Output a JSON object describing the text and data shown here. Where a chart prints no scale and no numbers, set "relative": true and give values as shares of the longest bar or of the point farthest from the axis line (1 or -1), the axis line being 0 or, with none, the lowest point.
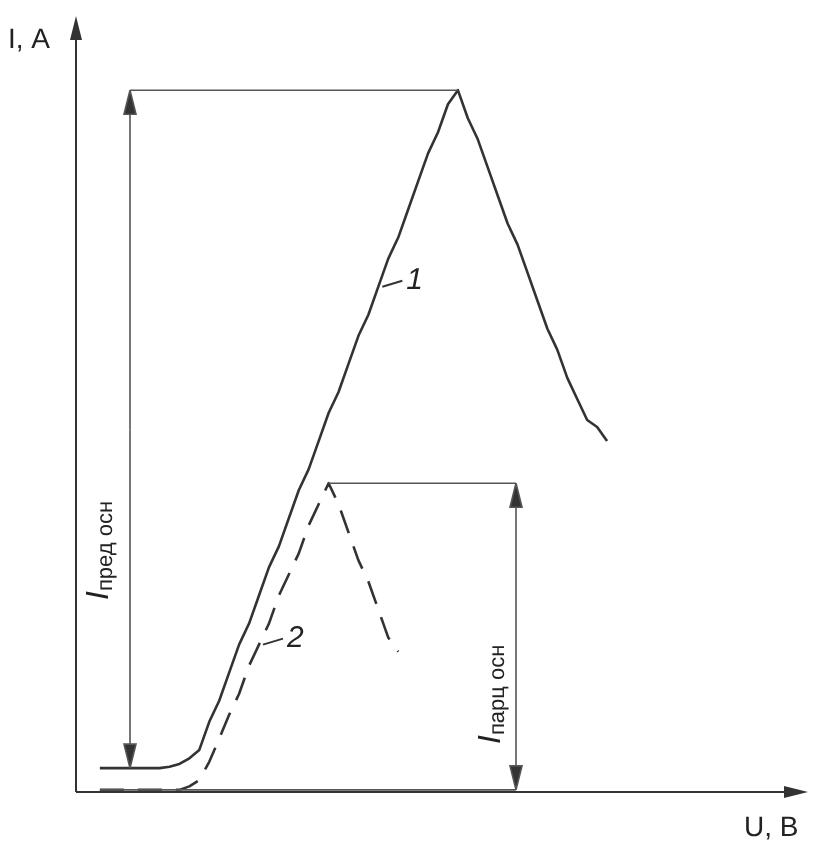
{
  "chart_data": {
    "type": "line",
    "relative": true,
    "legend": "center",
    "xlabel": "U, В",
    "ylabel": "I, А",
    "annotations": [
      "I$_{пред осн}$",
      "I$_{парц осн}$"
    ],
    "categories": [
      null,
      null,
      null,
      null,
      null,
      null,
      null,
      null,
      null,
      null,
      null,
      null,
      null,
      null,
      null,
      null,
      null,
      null,
      null,
      null,
      null,
      null,
      null,
      null,
      null,
      null,
      null,
      null,
      null,
      null,
      null,
      null,
      null,
      null,
      null,
      null,
      null,
      null,
      null,
      null,
      null,
      null,
      null,
      null,
      null,
      null,
      null,
      null,
      null,
      null,
      null,
      null
    ],
    "series": [
      {
        "name": "1",
        "color": "#333333",
        "line_style": "solid",
        "values": [
          0.034,
          0.034,
          0.034,
          0.034,
          0.034,
          0.034,
          0.034,
          0.036,
          0.04,
          0.048,
          0.06,
          0.1,
          0.13,
          0.17,
          0.21,
          0.24,
          0.28,
          0.32,
          0.35,
          0.39,
          0.43,
          0.46,
          0.5,
          0.54,
          0.57,
          0.61,
          0.65,
          0.68,
          0.72,
          0.76,
          0.79,
          0.83,
          0.87,
          0.91,
          0.94,
          0.98,
          1,
          0.96,
          0.93,
          0.89,
          0.85,
          0.81,
          0.78,
          0.74,
          0.7,
          0.66,
          0.63,
          0.59,
          0.56,
          0.53,
          0.52,
          0.5
        ]
      },
      {
        "name": "2",
        "color": "#333333",
        "line_style": "dashed",
        "values": [
          0.003,
          0.003,
          0.003,
          0.003,
          0.003,
          0.003,
          0.003,
          0.003,
          0.003,
          0.008,
          0.017,
          0.043,
          0.076,
          0.11,
          0.14,
          0.18,
          0.21,
          0.24,
          0.28,
          0.31,
          0.34,
          0.38,
          0.41,
          0.44,
          0.41,
          0.37,
          0.33,
          0.3,
          0.26,
          0.22,
          0.2,
          null,
          null,
          null,
          null,
          null,
          null,
          null,
          null,
          null,
          null,
          null,
          null,
          null,
          null,
          null,
          null,
          null,
          null,
          null,
          null,
          null
        ]
      }
    ]
  }
}
